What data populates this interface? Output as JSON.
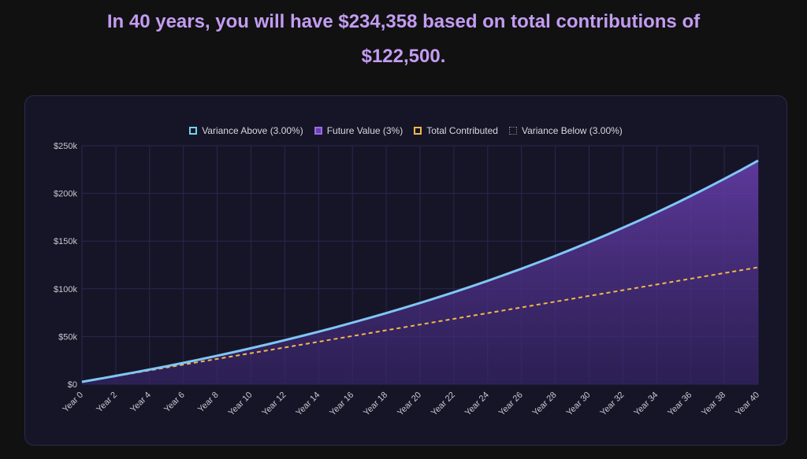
{
  "headline": {
    "line1": "In 40 years, you will have $234,358 based on total contributions of",
    "line2": "$122,500."
  },
  "colors": {
    "accent": "#c39cf2",
    "line": "#80c6f5",
    "fill": "#6a3fb0",
    "contributed": "#f2b84b",
    "variance_above": "#6fd3f0",
    "variance_below": "#777777"
  },
  "chart_data": {
    "type": "area",
    "title": "",
    "xlabel": "",
    "ylabel": "",
    "ylim": [
      0,
      250000
    ],
    "y_ticks": [
      0,
      50000,
      100000,
      150000,
      200000,
      250000
    ],
    "y_tick_labels": [
      "$0",
      "$50k",
      "$100k",
      "$150k",
      "$200k",
      "$250k"
    ],
    "x_tick_labels": [
      "Year 0",
      "Year 2",
      "Year 4",
      "Year 6",
      "Year 8",
      "Year 10",
      "Year 12",
      "Year 14",
      "Year 16",
      "Year 18",
      "Year 20",
      "Year 22",
      "Year 24",
      "Year 26",
      "Year 28",
      "Year 30",
      "Year 32",
      "Year 34",
      "Year 36",
      "Year 38",
      "Year 40"
    ],
    "grid": true,
    "legend_position": "top-center",
    "legend": [
      "Variance Above (3.00%)",
      "Future Value (3%)",
      "Total Contributed",
      "Variance Below (3.00%)"
    ],
    "x": [
      0,
      1,
      2,
      3,
      4,
      5,
      6,
      7,
      8,
      9,
      10,
      11,
      12,
      13,
      14,
      15,
      16,
      17,
      18,
      19,
      20,
      21,
      22,
      23,
      24,
      25,
      26,
      27,
      28,
      29,
      30,
      31,
      32,
      33,
      34,
      35,
      36,
      37,
      38,
      39,
      40
    ],
    "series": [
      {
        "name": "Future Value (3%)",
        "values": [
          2500,
          5575,
          8742,
          12005,
          15365,
          18826,
          22390,
          26062,
          29844,
          33739,
          37751,
          41884,
          46141,
          50525,
          55040,
          59692,
          64482,
          69417,
          74499,
          79734,
          85126,
          90680,
          96401,
          102293,
          108361,
          114612,
          121051,
          127682,
          134513,
          141548,
          148794,
          156258,
          163946,
          171864,
          180020,
          188421,
          197074,
          205986,
          215165,
          224620,
          234358
        ]
      },
      {
        "name": "Total Contributed",
        "values": [
          2500,
          5500,
          8500,
          11500,
          14500,
          17500,
          20500,
          23500,
          26500,
          29500,
          32500,
          35500,
          38500,
          41500,
          44500,
          47500,
          50500,
          53500,
          56500,
          59500,
          62500,
          65500,
          68500,
          71500,
          74500,
          77500,
          80500,
          83500,
          86500,
          89500,
          92500,
          95500,
          98500,
          101500,
          104500,
          107500,
          110500,
          113500,
          116500,
          119500,
          122500
        ]
      }
    ]
  }
}
